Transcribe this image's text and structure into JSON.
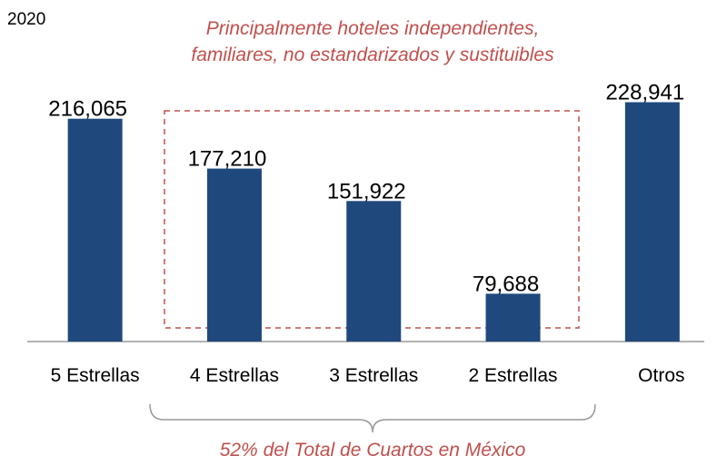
{
  "chart_data": {
    "type": "bar",
    "subtitle": "2020",
    "annotations": [
      "Principalmente hoteles independientes,",
      "familiares, no estandarizados y sustituibles",
      "52% del Total de Cuartos en México"
    ],
    "categories": [
      "5 Estrellas",
      "4 Estrellas",
      "3 Estrellas",
      "2 Estrellas",
      "Otros"
    ],
    "values": [
      216065,
      177210,
      151922,
      79688,
      228941
    ],
    "value_labels": [
      "216,065",
      "177,210",
      "151,922",
      "79,688",
      "228,941"
    ],
    "color": "#1f497d",
    "annotation_color": "#c0504d",
    "ylim": [
      42400,
      230000
    ]
  }
}
